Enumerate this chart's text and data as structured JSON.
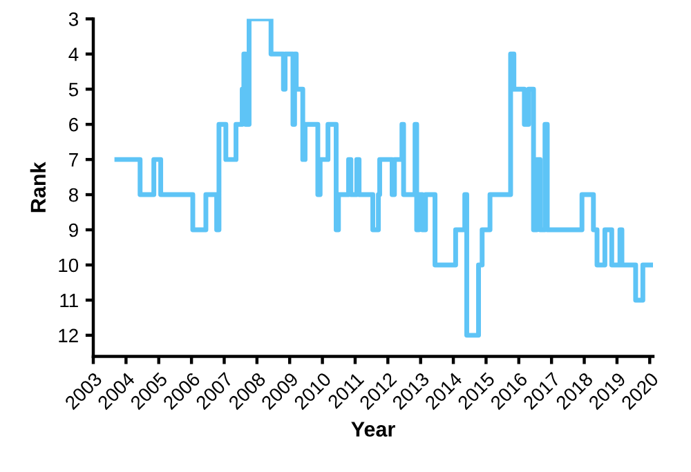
{
  "chart_data": {
    "type": "step",
    "xlabel": "Year",
    "ylabel": "Rank",
    "x": [
      2003.72,
      2004.43,
      2004.85,
      2005.06,
      2006.04,
      2006.44,
      2006.77,
      2006.84,
      2007.05,
      2007.36,
      2007.55,
      2007.6,
      2007.65,
      2007.76,
      2008.43,
      2008.81,
      2008.86,
      2009.1,
      2009.15,
      2009.2,
      2009.4,
      2009.47,
      2009.86,
      2009.93,
      2010.17,
      2010.42,
      2010.49,
      2010.8,
      2010.87,
      2011.05,
      2011.12,
      2011.54,
      2011.71,
      2011.75,
      2012.13,
      2012.2,
      2012.43,
      2012.48,
      2012.83,
      2012.88,
      2012.95,
      2013.05,
      2013.15,
      2013.44,
      2014.07,
      2014.35,
      2014.41,
      2014.77,
      2014.88,
      2015.12,
      2015.75,
      2015.85,
      2016.17,
      2016.3,
      2016.45,
      2016.55,
      2016.65,
      2016.8,
      2016.87,
      2017.93,
      2018.28,
      2018.39,
      2018.63,
      2018.84,
      2019.09,
      2019.15,
      2019.57,
      2019.79,
      2020.03
    ],
    "series": [
      {
        "color": "#5ec4f6",
        "values": [
          7,
          8,
          7,
          8,
          9,
          8,
          9,
          6,
          7,
          6,
          5,
          4,
          6,
          3,
          4,
          5,
          4,
          6,
          4,
          5,
          7,
          6,
          8,
          7,
          6,
          9,
          8,
          7,
          8,
          7,
          8,
          9,
          8,
          7,
          8,
          7,
          6,
          8,
          6,
          9,
          8,
          9,
          8,
          10,
          9,
          8,
          12,
          10,
          9,
          8,
          4,
          5,
          6,
          5,
          9,
          7,
          9,
          6,
          9,
          8,
          9,
          10,
          9,
          10,
          9,
          10,
          11,
          10,
          10
        ]
      }
    ],
    "xlim": [
      2003,
      2020.1
    ],
    "xticks": [
      2003,
      2004,
      2005,
      2006,
      2007,
      2008,
      2009,
      2010,
      2011,
      2012,
      2013,
      2014,
      2015,
      2016,
      2017,
      2018,
      2019,
      2020
    ],
    "ylim": [
      12.6,
      3
    ],
    "yticks": [
      3,
      4,
      5,
      6,
      7,
      8,
      9,
      10,
      11,
      12
    ],
    "grid": false,
    "legend": false
  }
}
